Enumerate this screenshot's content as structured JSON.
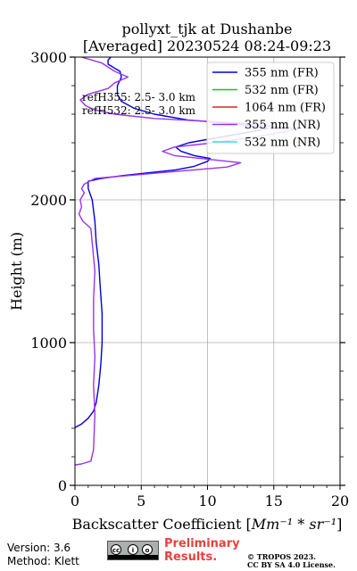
{
  "chart_data": {
    "type": "line",
    "title_line1": "pollyxt_tjk at Dushanbe",
    "title_line2": "[Averaged] 20230524 08:24-09:23",
    "xlabel": "Backscatter Coefficient [",
    "xlabel_unit": "Mm⁻¹ * sr⁻¹",
    "xlabel_close": "]",
    "ylabel": "Height (m)",
    "xlim": [
      0,
      20
    ],
    "ylim": [
      0,
      3000
    ],
    "x_ticks": [
      "0",
      "5",
      "10",
      "15",
      "20"
    ],
    "y_ticks": [
      "0",
      "1000",
      "2000",
      "3000"
    ],
    "grid": true,
    "legend_position": "top-right",
    "annotations": [
      "refH355:  2.5- 3.0 km",
      "refH532:  2.5- 3.0 km"
    ],
    "series": [
      {
        "name": "355 nm (FR)",
        "color": "#0000dd",
        "points": [
          [
            -0.1,
            400
          ],
          [
            0.5,
            430
          ],
          [
            1.0,
            470
          ],
          [
            1.4,
            520
          ],
          [
            1.6,
            580
          ],
          [
            1.8,
            700
          ],
          [
            1.95,
            850
          ],
          [
            2.05,
            1000
          ],
          [
            2.05,
            1200
          ],
          [
            1.9,
            1400
          ],
          [
            1.8,
            1550
          ],
          [
            1.6,
            1700
          ],
          [
            1.5,
            1850
          ],
          [
            1.3,
            2000
          ],
          [
            1.0,
            2080
          ],
          [
            1.0,
            2130
          ],
          [
            2.0,
            2150
          ],
          [
            3.6,
            2170
          ],
          [
            5.6,
            2190
          ],
          [
            7.6,
            2210
          ],
          [
            9.0,
            2235
          ],
          [
            10.0,
            2270
          ],
          [
            10.2,
            2290
          ],
          [
            9.0,
            2310
          ],
          [
            8.0,
            2340
          ],
          [
            7.6,
            2370
          ],
          [
            8.6,
            2400
          ],
          [
            11.0,
            2440
          ],
          [
            13.5,
            2480
          ],
          [
            14.5,
            2500
          ],
          [
            12.5,
            2530
          ],
          [
            8.5,
            2560
          ],
          [
            6.0,
            2600
          ],
          [
            4.5,
            2640
          ],
          [
            3.5,
            2690
          ],
          [
            3.2,
            2740
          ],
          [
            3.2,
            2800
          ],
          [
            3.5,
            2860
          ],
          [
            3.4,
            2900
          ],
          [
            2.5,
            2950
          ],
          [
            2.5,
            2980
          ],
          [
            2.7,
            3000
          ]
        ]
      },
      {
        "name": "532 nm (FR)",
        "color": "#22bb22",
        "points": []
      },
      {
        "name": "1064 nm (FR)",
        "color": "#dd2222",
        "points": []
      },
      {
        "name": "355 nm (NR)",
        "color": "#9933ee",
        "points": [
          [
            -0.2,
            140
          ],
          [
            0.5,
            150
          ],
          [
            1.2,
            170
          ],
          [
            1.4,
            250
          ],
          [
            1.5,
            500
          ],
          [
            1.4,
            700
          ],
          [
            1.5,
            900
          ],
          [
            1.4,
            1100
          ],
          [
            1.4,
            1300
          ],
          [
            1.5,
            1500
          ],
          [
            1.3,
            1700
          ],
          [
            1.2,
            1800
          ],
          [
            0.6,
            1850
          ],
          [
            0.3,
            1900
          ],
          [
            0.5,
            1950
          ],
          [
            0.4,
            2000
          ],
          [
            0.7,
            2050
          ],
          [
            0.5,
            2080
          ],
          [
            0.7,
            2110
          ],
          [
            1.5,
            2150
          ],
          [
            4.0,
            2170
          ],
          [
            6.5,
            2190
          ],
          [
            9.0,
            2210
          ],
          [
            11.5,
            2230
          ],
          [
            12.5,
            2260
          ],
          [
            10.5,
            2280
          ],
          [
            7.5,
            2310
          ],
          [
            6.6,
            2340
          ],
          [
            7.5,
            2370
          ],
          [
            10.5,
            2400
          ],
          [
            13.5,
            2440
          ],
          [
            16.0,
            2480
          ],
          [
            16.8,
            2500
          ],
          [
            12.0,
            2540
          ],
          [
            6.0,
            2570
          ],
          [
            3.0,
            2600
          ],
          [
            1.5,
            2630
          ],
          [
            0.8,
            2660
          ],
          [
            0.4,
            2700
          ],
          [
            1.0,
            2740
          ],
          [
            2.5,
            2780
          ],
          [
            3.0,
            2820
          ],
          [
            4.0,
            2860
          ],
          [
            3.0,
            2900
          ],
          [
            2.0,
            2960
          ],
          [
            0.5,
            3000
          ]
        ]
      },
      {
        "name": "532 nm (NR)",
        "color": "#33dddd",
        "points": []
      }
    ]
  },
  "footer": {
    "version": "Version: 3.6",
    "method": "Method: Klett",
    "preliminary_line1": "Preliminary",
    "preliminary_line2": "Results.",
    "copyright_line1": "© TROPOS 2023.",
    "copyright_line2": "CC BY SA 4.0 License."
  }
}
